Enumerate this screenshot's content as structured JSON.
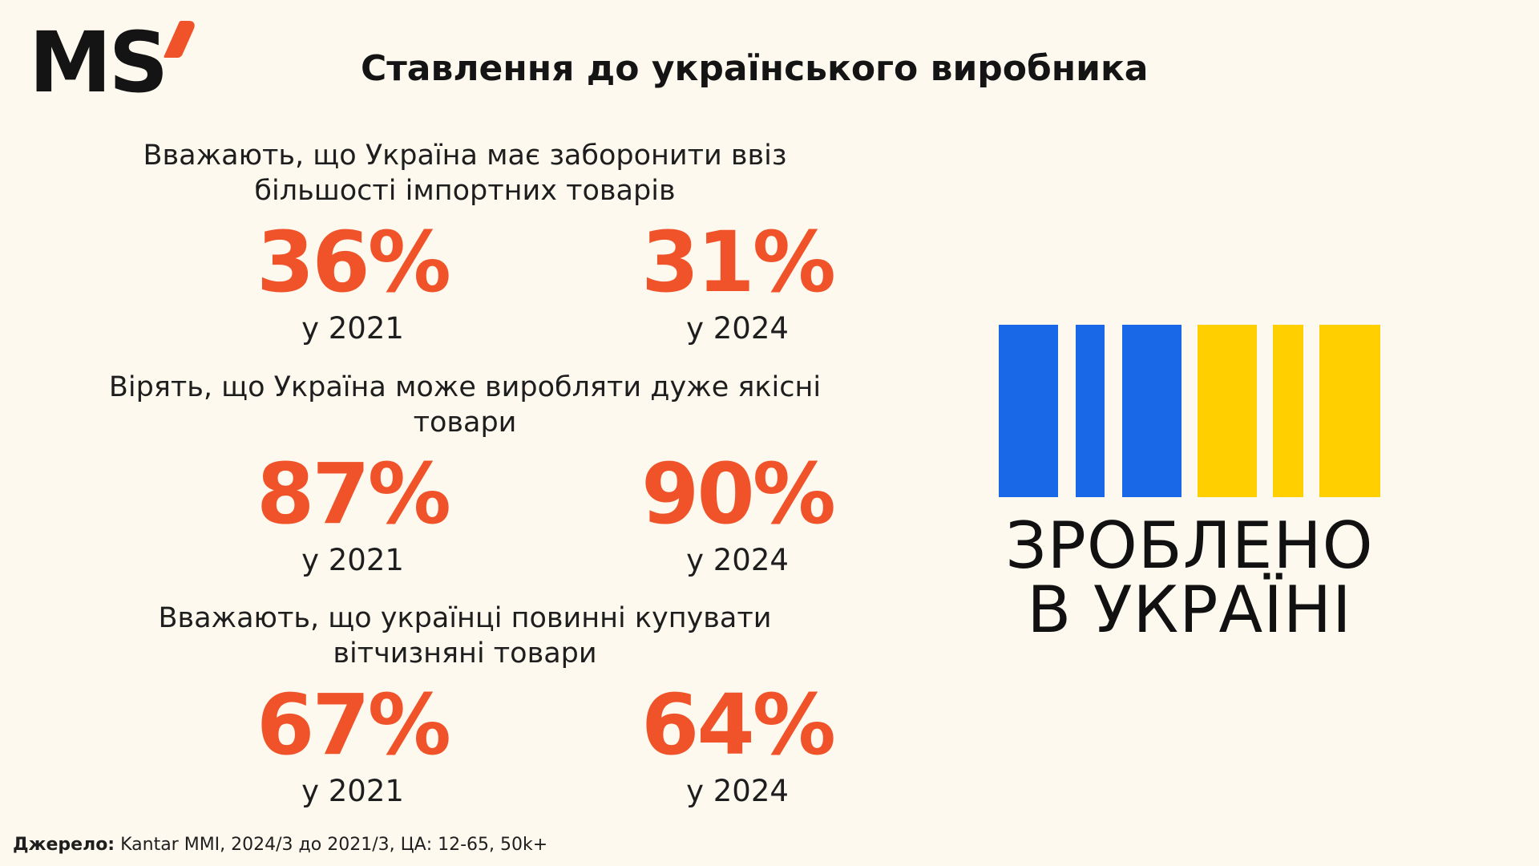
{
  "logo": {
    "text": "MS",
    "accent_color": "#f0532a"
  },
  "title": "Ставлення до українського виробника",
  "accent_color": "#f0532a",
  "stats": [
    {
      "description": "Вважають, що Україна має заборонити ввіз більшості імпортних товарів",
      "values": [
        {
          "value": "36%",
          "year_label": "у 2021"
        },
        {
          "value": "31%",
          "year_label": "у 2024"
        }
      ]
    },
    {
      "description": "Вірять, що Україна може виробляти дуже якісні товари",
      "values": [
        {
          "value": "87%",
          "year_label": "у 2021"
        },
        {
          "value": "90%",
          "year_label": "у 2024"
        }
      ]
    },
    {
      "description": "Вважають, що українці повинні купувати вітчизняні товари",
      "values": [
        {
          "value": "67%",
          "year_label": "у 2021"
        },
        {
          "value": "64%",
          "year_label": "у 2024"
        }
      ]
    }
  ],
  "brand_mark": {
    "line1": "ЗРОБЛЕНО",
    "line2": "В УКРАЇНІ",
    "colors": {
      "blue": "#1868e8",
      "yellow": "#ffcf00"
    }
  },
  "source": {
    "label": "Джерело:",
    "text": " Kantar MMI, 2024/3 до 2021/3, ЦА: 12-65, 50k+"
  }
}
